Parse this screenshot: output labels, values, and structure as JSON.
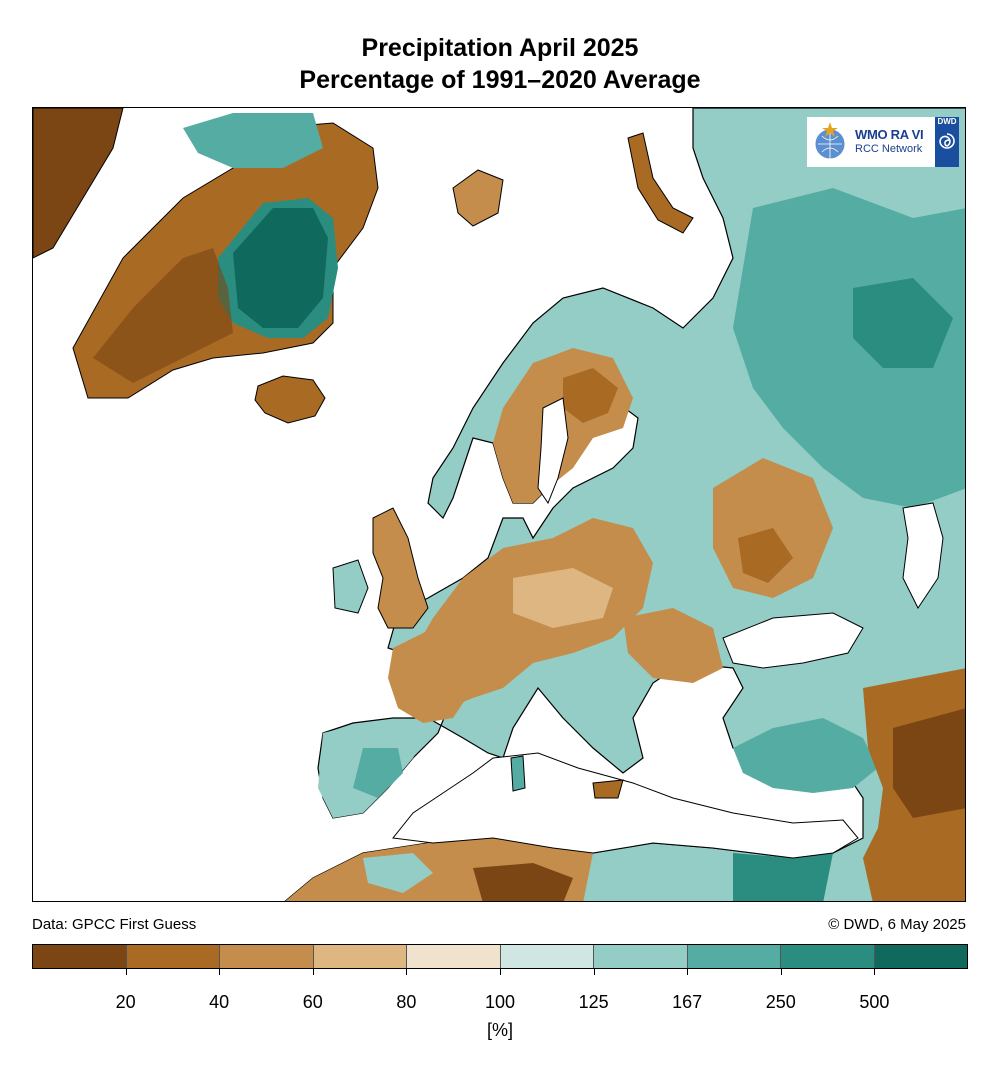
{
  "title": {
    "line1": "Precipitation April 2025",
    "line2": "Percentage of 1991–2020 Average"
  },
  "logo": {
    "org": "WMO RA VI",
    "network": "RCC Network",
    "badge": "DWD"
  },
  "footer": {
    "data_source": "Data: GPCC First Guess",
    "copyright": "© DWD, 6 May 2025"
  },
  "legend": {
    "unit": "[%]",
    "ticks": [
      "20",
      "40",
      "60",
      "80",
      "100",
      "125",
      "167",
      "250",
      "500"
    ],
    "colors": [
      "#7b4613",
      "#a96a24",
      "#c58d4b",
      "#ddb681",
      "#f1e2cd",
      "#cfe6e3",
      "#93cdc6",
      "#55aca3",
      "#2a8d80",
      "#0f6a5d"
    ]
  },
  "map": {
    "land_default": "#d2b07a",
    "ocean": "#ffffff",
    "coast": "#000000"
  }
}
